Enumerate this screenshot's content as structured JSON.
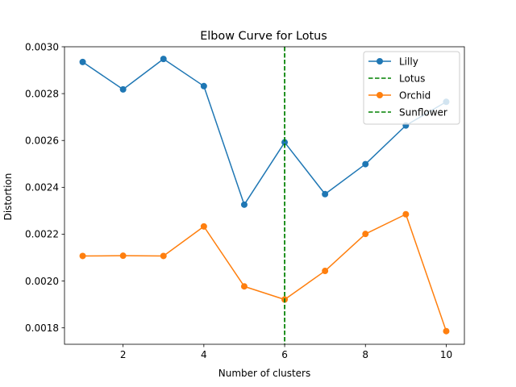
{
  "chart_data": {
    "type": "line",
    "title": "Elbow Curve for Lotus",
    "xlabel": "Number of clusters",
    "ylabel": "Distortion",
    "xlim": [
      0.55,
      10.45
    ],
    "ylim": [
      0.00173,
      0.003
    ],
    "xticks": [
      2,
      4,
      6,
      8,
      10
    ],
    "yticks": [
      0.0018,
      0.002,
      0.0022,
      0.0024,
      0.0026,
      0.0028,
      0.003
    ],
    "ytick_labels": [
      "0.0018",
      "0.0020",
      "0.0022",
      "0.0024",
      "0.0026",
      "0.0028",
      "0.0030"
    ],
    "grid": false,
    "legend_position": "top-right",
    "x": [
      1,
      2,
      3,
      4,
      5,
      6,
      7,
      8,
      9,
      10
    ],
    "series": [
      {
        "name": "Lilly",
        "color": "#1f77b4",
        "style": "line-marker",
        "values": [
          0.002935,
          0.002818,
          0.002948,
          0.002832,
          0.002326,
          0.002592,
          0.002371,
          0.002499,
          0.002664,
          0.002765
        ]
      },
      {
        "name": "Orchid",
        "color": "#ff7f0e",
        "style": "line-marker",
        "values": [
          0.002107,
          0.002108,
          0.002107,
          0.002233,
          0.001977,
          0.001921,
          0.002043,
          0.002201,
          0.002285,
          0.001786
        ]
      }
    ],
    "vlines": [
      {
        "name": "Lotus",
        "x": 6,
        "color": "#008000",
        "style": "dashed"
      },
      {
        "name": "Sunflower",
        "x": 6,
        "color": "#008000",
        "style": "dashed"
      }
    ],
    "legend": [
      {
        "name": "Lilly",
        "kind": "line-marker",
        "color": "#1f77b4"
      },
      {
        "name": "Lotus",
        "kind": "dashed",
        "color": "#008000"
      },
      {
        "name": "Orchid",
        "kind": "line-marker",
        "color": "#ff7f0e"
      },
      {
        "name": "Sunflower",
        "kind": "dashed",
        "color": "#008000"
      }
    ]
  }
}
